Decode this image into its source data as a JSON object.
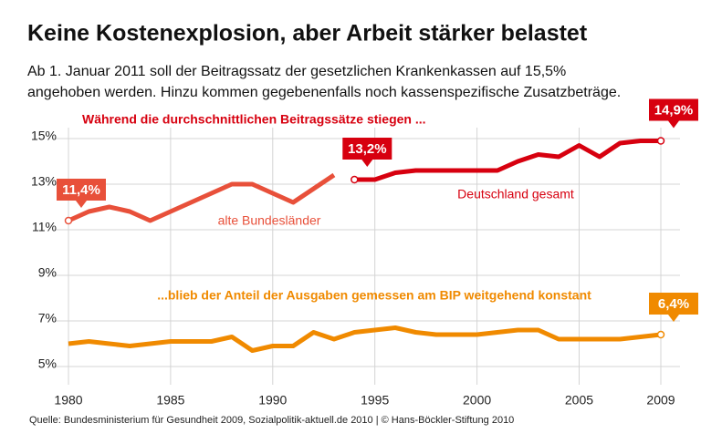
{
  "chart_data": {
    "type": "line",
    "title": "Keine Kostenexplosion, aber Arbeit stärker belastet",
    "subtitle": [
      "Ab 1. Januar 2011 soll der Beitragssatz der gesetzlichen Krankenkassen auf 15,5%",
      "angehoben werden. Hinzu kommen gegebenenfalls noch kassenspezifische Zusatzbeträge."
    ],
    "annotations": [
      "Während die durchschnittlichen Beitragssätze stiegen ...",
      "...blieb der Anteil der Ausgaben gemessen am BIP weitgehend konstant"
    ],
    "annotation_colors": [
      "#d7000f",
      "#f08a00"
    ],
    "source": "Quelle: Bundesministerium für Gesundheit 2009, Sozialpolitik-aktuell.de 2010 | © Hans-Böckler-Stiftung 2010",
    "xlim": [
      1980,
      2009
    ],
    "xticks": [
      1980,
      1985,
      1990,
      1995,
      2000,
      2005,
      2009
    ],
    "ylim": [
      5,
      15
    ],
    "yticks": [
      {
        "value": 5,
        "label": "5%"
      },
      {
        "value": 7,
        "label": "7%"
      },
      {
        "value": 9,
        "label": "9%"
      },
      {
        "value": 11,
        "label": "11%"
      },
      {
        "value": 13,
        "label": "13%"
      },
      {
        "value": 15,
        "label": "15%"
      }
    ],
    "grid": true,
    "series": [
      {
        "name": "alte Bundesländer",
        "color": "#e8503a",
        "x": [
          1980,
          1981,
          1982,
          1983,
          1984,
          1985,
          1986,
          1987,
          1988,
          1989,
          1990,
          1991,
          1992,
          1993
        ],
        "values": [
          11.4,
          11.8,
          12.0,
          11.8,
          11.4,
          11.8,
          12.2,
          12.6,
          13.0,
          13.0,
          12.6,
          12.2,
          12.8,
          13.4
        ],
        "value_labels": [
          "11,4%",
          null,
          null,
          null,
          null,
          null,
          null,
          null,
          null,
          null,
          null,
          null,
          null,
          null
        ]
      },
      {
        "name": "Deutschland gesamt",
        "color": "#d7000f",
        "x": [
          1994,
          1995,
          1996,
          1997,
          1998,
          1999,
          2000,
          2001,
          2002,
          2003,
          2004,
          2005,
          2006,
          2007,
          2008,
          2009
        ],
        "values": [
          13.2,
          13.2,
          13.5,
          13.6,
          13.6,
          13.6,
          13.6,
          13.6,
          14.0,
          14.3,
          14.2,
          14.7,
          14.2,
          14.8,
          14.9,
          14.9
        ],
        "value_labels": [
          "13,2%",
          null,
          null,
          null,
          null,
          null,
          null,
          null,
          null,
          null,
          null,
          null,
          null,
          null,
          null,
          "14,9%"
        ]
      },
      {
        "color": "#f08a00",
        "x": [
          1980,
          1981,
          1982,
          1983,
          1984,
          1985,
          1986,
          1987,
          1988,
          1989,
          1990,
          1991,
          1992,
          1993,
          1994,
          1995,
          1996,
          1997,
          1998,
          1999,
          2000,
          2001,
          2002,
          2003,
          2004,
          2005,
          2006,
          2007,
          2008,
          2009
        ],
        "values": [
          6.0,
          6.1,
          6.0,
          5.9,
          6.0,
          6.1,
          6.1,
          6.1,
          6.3,
          5.7,
          5.9,
          5.9,
          6.5,
          6.2,
          6.5,
          6.6,
          6.7,
          6.5,
          6.4,
          6.4,
          6.4,
          6.5,
          6.6,
          6.6,
          6.2,
          6.2,
          6.2,
          6.2,
          6.3,
          6.4
        ],
        "value_labels": [
          null,
          null,
          null,
          null,
          null,
          null,
          null,
          null,
          null,
          null,
          null,
          null,
          null,
          null,
          null,
          null,
          null,
          null,
          null,
          null,
          null,
          null,
          null,
          null,
          null,
          null,
          null,
          null,
          null,
          "6,4%"
        ]
      }
    ]
  }
}
